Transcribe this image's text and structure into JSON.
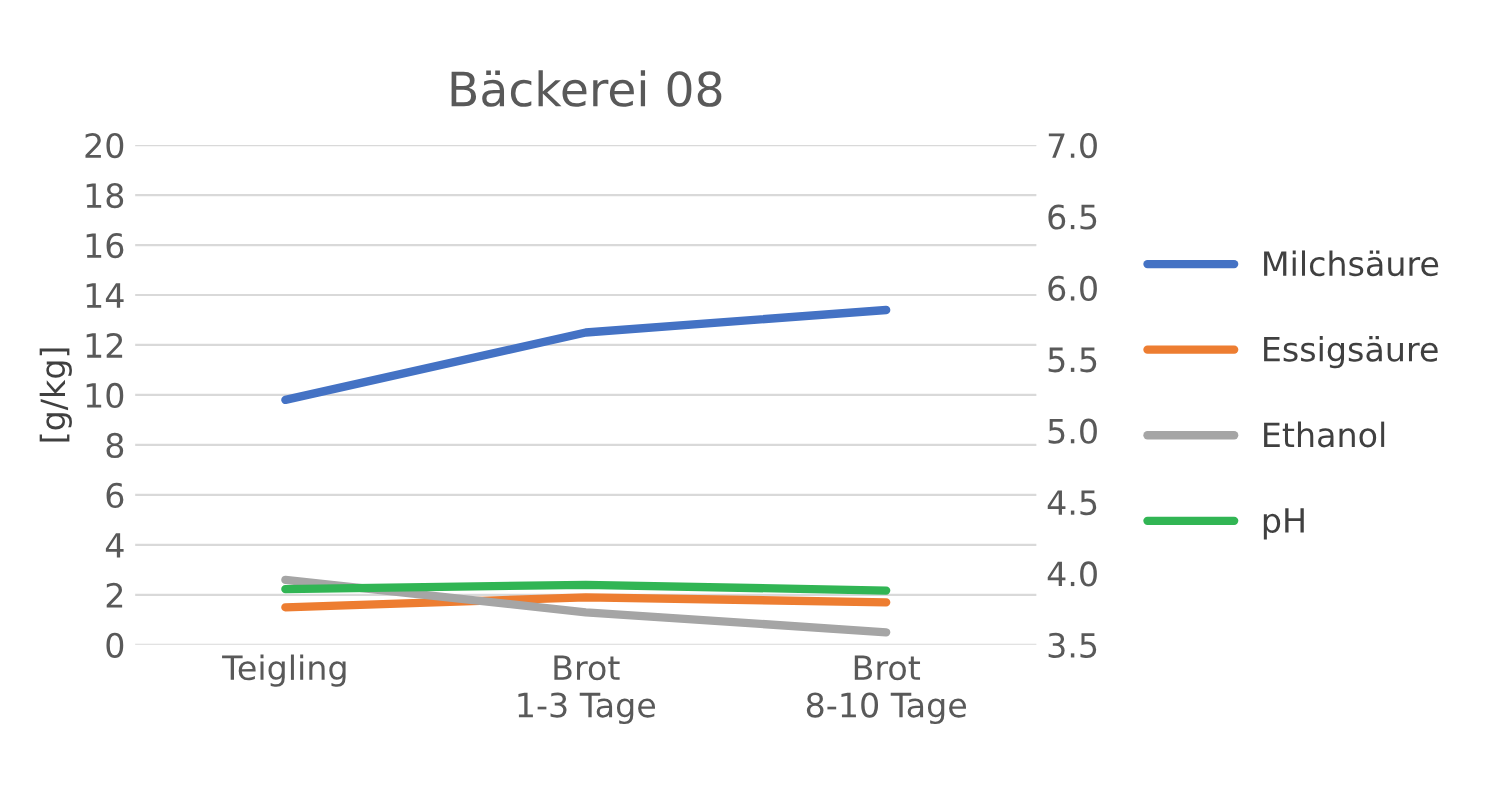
{
  "chart_data": {
    "type": "line",
    "title": "Bäckerei 08",
    "ylabel": "[g/kg]",
    "categories": [
      "Teigling",
      "Brot\n1-3 Tage",
      "Brot\n8-10 Tage"
    ],
    "series": [
      {
        "name": "Milchsäure",
        "color": "#4472c4",
        "values": [
          9.8,
          12.5,
          13.4
        ]
      },
      {
        "name": "Essigsäure",
        "color": "#ed7d31",
        "values": [
          1.5,
          1.9,
          1.7
        ]
      },
      {
        "name": "Ethanol",
        "color": "#a5a5a5",
        "values": [
          2.6,
          1.3,
          0.5
        ]
      },
      {
        "name": "pH",
        "color": "#31b554",
        "values": [
          3.89,
          3.92,
          3.88
        ],
        "axis": "y2"
      }
    ],
    "ylim": [
      0,
      20
    ],
    "yticks": [
      0,
      2,
      4,
      6,
      8,
      10,
      12,
      14,
      16,
      18,
      20
    ],
    "y2lim": [
      3.5,
      7.0
    ],
    "y2ticks": [
      {
        "value": 3.5,
        "label": "3.5"
      },
      {
        "value": 4.0,
        "label": "4.0"
      },
      {
        "value": 4.5,
        "label": "4.5"
      },
      {
        "value": 5.0,
        "label": "5.0"
      },
      {
        "value": 5.5,
        "label": "5.5"
      },
      {
        "value": 6.0,
        "label": "6.0"
      },
      {
        "value": 6.5,
        "label": "6.5"
      },
      {
        "value": 7.0,
        "label": "7.0"
      }
    ],
    "grid": "y",
    "legend": "right",
    "line_style": "solid",
    "marker": "none"
  }
}
